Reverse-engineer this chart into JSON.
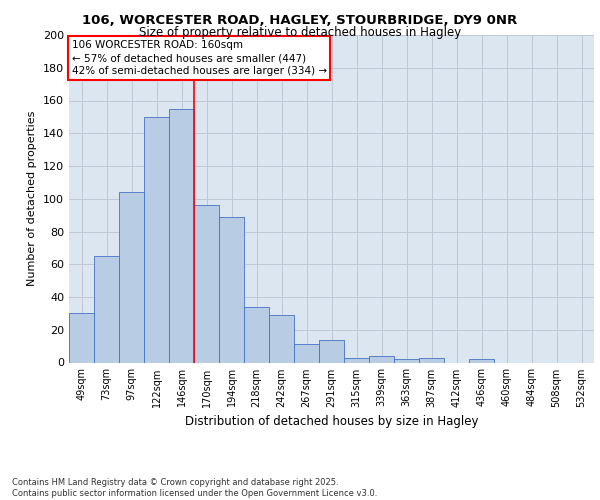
{
  "title1": "106, WORCESTER ROAD, HAGLEY, STOURBRIDGE, DY9 0NR",
  "title2": "Size of property relative to detached houses in Hagley",
  "xlabel": "Distribution of detached houses by size in Hagley",
  "ylabel": "Number of detached properties",
  "categories": [
    "49sqm",
    "73sqm",
    "97sqm",
    "122sqm",
    "146sqm",
    "170sqm",
    "194sqm",
    "218sqm",
    "242sqm",
    "267sqm",
    "291sqm",
    "315sqm",
    "339sqm",
    "363sqm",
    "387sqm",
    "412sqm",
    "436sqm",
    "460sqm",
    "484sqm",
    "508sqm",
    "532sqm"
  ],
  "values": [
    30,
    65,
    104,
    150,
    155,
    96,
    89,
    34,
    29,
    11,
    14,
    3,
    4,
    2,
    3,
    0,
    2,
    0,
    0,
    0,
    0
  ],
  "bar_color": "#b8cce4",
  "bar_edge_color": "#4472c4",
  "grid_color": "#c0c8d8",
  "bg_color": "#dce6f1",
  "vline_color": "#ff0000",
  "vline_x": 4.5,
  "annotation_text": "106 WORCESTER ROAD: 160sqm\n← 57% of detached houses are smaller (447)\n42% of semi-detached houses are larger (334) →",
  "footnote": "Contains HM Land Registry data © Crown copyright and database right 2025.\nContains public sector information licensed under the Open Government Licence v3.0.",
  "ylim": [
    0,
    200
  ],
  "yticks": [
    0,
    20,
    40,
    60,
    80,
    100,
    120,
    140,
    160,
    180,
    200
  ]
}
